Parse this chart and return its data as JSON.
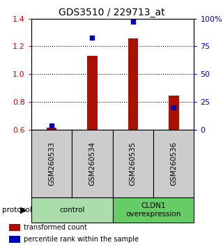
{
  "title": "GDS3510 / 229713_at",
  "samples": [
    "GSM260533",
    "GSM260534",
    "GSM260535",
    "GSM260536"
  ],
  "red_values": [
    0.615,
    1.13,
    1.255,
    0.845
  ],
  "blue_values_pct": [
    3.5,
    83,
    97,
    20
  ],
  "ylim_left": [
    0.6,
    1.4
  ],
  "ylim_right": [
    0,
    100
  ],
  "yticks_left": [
    0.6,
    0.8,
    1.0,
    1.2,
    1.4
  ],
  "yticks_right": [
    0,
    25,
    50,
    75,
    100
  ],
  "ytick_labels_right": [
    "0",
    "25",
    "50",
    "75",
    "100%"
  ],
  "groups": [
    {
      "label": "control",
      "samples": [
        0,
        1
      ],
      "color": "#aaddaa"
    },
    {
      "label": "CLDN1\noverexpression",
      "samples": [
        2,
        3
      ],
      "color": "#66cc66"
    }
  ],
  "protocol_label": "protocol",
  "legend_red": "transformed count",
  "legend_blue": "percentile rank within the sample",
  "bar_color": "#aa1100",
  "dot_color": "#0000bb",
  "sample_box_color": "#cccccc",
  "bar_width": 0.25,
  "dot_size": 25,
  "ylabel_left_color": "#cc0000",
  "ylabel_right_color": "#0000cc",
  "title_fontsize": 10,
  "tick_fontsize": 8,
  "label_fontsize": 7.5
}
